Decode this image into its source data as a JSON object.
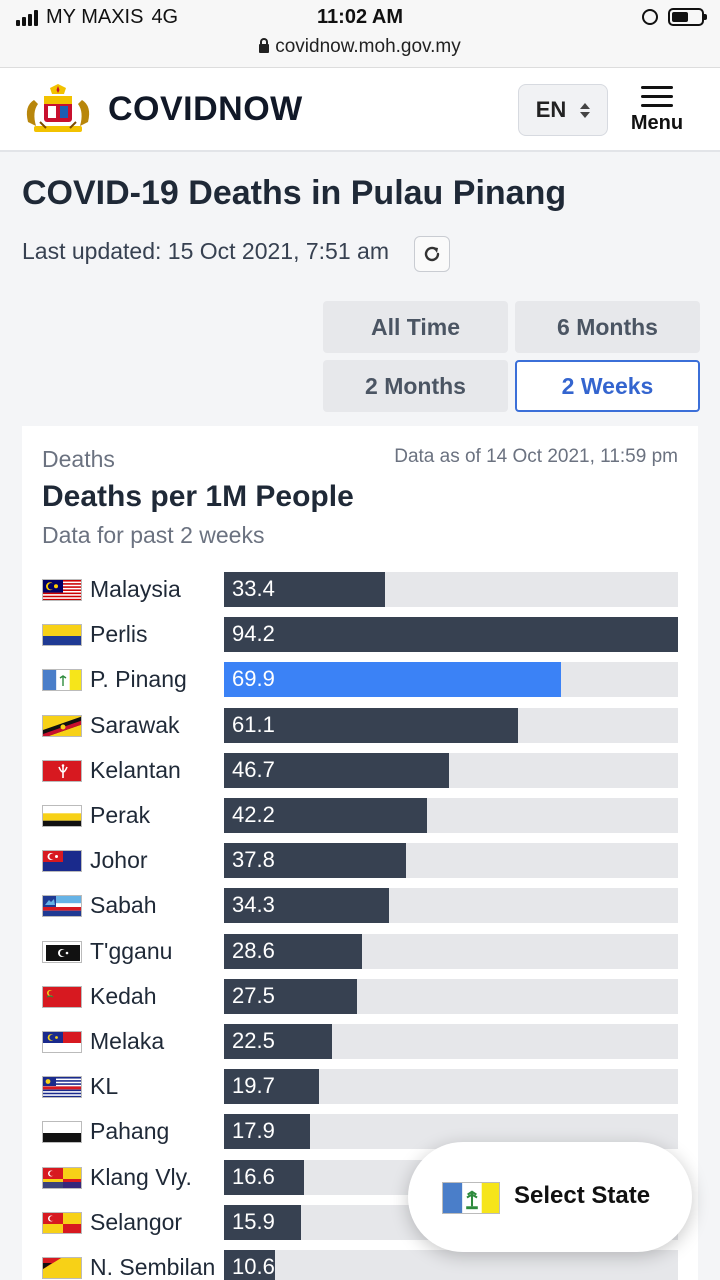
{
  "status_bar": {
    "carrier": "MY MAXIS",
    "network": "4G",
    "time": "11:02 AM",
    "url": "covidnow.moh.gov.my"
  },
  "header": {
    "brand": "COVIDNOW",
    "language": "EN",
    "menu_label": "Menu",
    "logo_icon": "malaysia-coat-of-arms-icon"
  },
  "page": {
    "title": "COVID-19 Deaths in Pulau Pinang",
    "last_updated": "Last updated: 15 Oct 2021, 7:51 am"
  },
  "time_ranges": [
    {
      "label": "All Time",
      "active": false
    },
    {
      "label": "6 Months",
      "active": false
    },
    {
      "label": "2 Months",
      "active": false
    },
    {
      "label": "2 Weeks",
      "active": true
    }
  ],
  "card": {
    "kicker": "Deaths",
    "as_of": "Data as of 14 Oct 2021, 11:59 pm",
    "title": "Deaths per 1M People",
    "subtitle": "Data for past 2 weeks"
  },
  "colors": {
    "bar": "#374151",
    "highlight": "#3b82f6",
    "track": "#e6e7ea",
    "active_button": "#3465cf"
  },
  "chart_data": {
    "type": "bar",
    "orientation": "horizontal",
    "max": 94.2,
    "highlight": "P. Pinang",
    "categories": [
      "Malaysia",
      "Perlis",
      "P. Pinang",
      "Sarawak",
      "Kelantan",
      "Perak",
      "Johor",
      "Sabah",
      "T'gganu",
      "Kedah",
      "Melaka",
      "KL",
      "Pahang",
      "Klang Vly.",
      "Selangor",
      "N. Sembilan"
    ],
    "values": [
      33.4,
      94.2,
      69.9,
      61.1,
      46.7,
      42.2,
      37.8,
      34.3,
      28.6,
      27.5,
      22.5,
      19.7,
      17.9,
      16.6,
      15.9,
      10.6
    ],
    "value_labels": [
      "33.4",
      "94.2",
      "69.9",
      "61.1",
      "46.7",
      "42.2",
      "37.8",
      "34.3",
      "28.6",
      "27.5",
      "22.5",
      "19.7",
      "17.9",
      "16.6",
      "15.9",
      "10.6"
    ],
    "flags": [
      "malaysia-flag-icon",
      "perlis-flag-icon",
      "penang-flag-icon",
      "sarawak-flag-icon",
      "kelantan-flag-icon",
      "perak-flag-icon",
      "johor-flag-icon",
      "sabah-flag-icon",
      "terengganu-flag-icon",
      "kedah-flag-icon",
      "melaka-flag-icon",
      "kl-flag-icon",
      "pahang-flag-icon",
      "klang-valley-flag-icon",
      "selangor-flag-icon",
      "negeri-sembilan-flag-icon"
    ]
  },
  "select_state": {
    "label": "Select State",
    "flag_icon": "penang-flag-icon"
  }
}
